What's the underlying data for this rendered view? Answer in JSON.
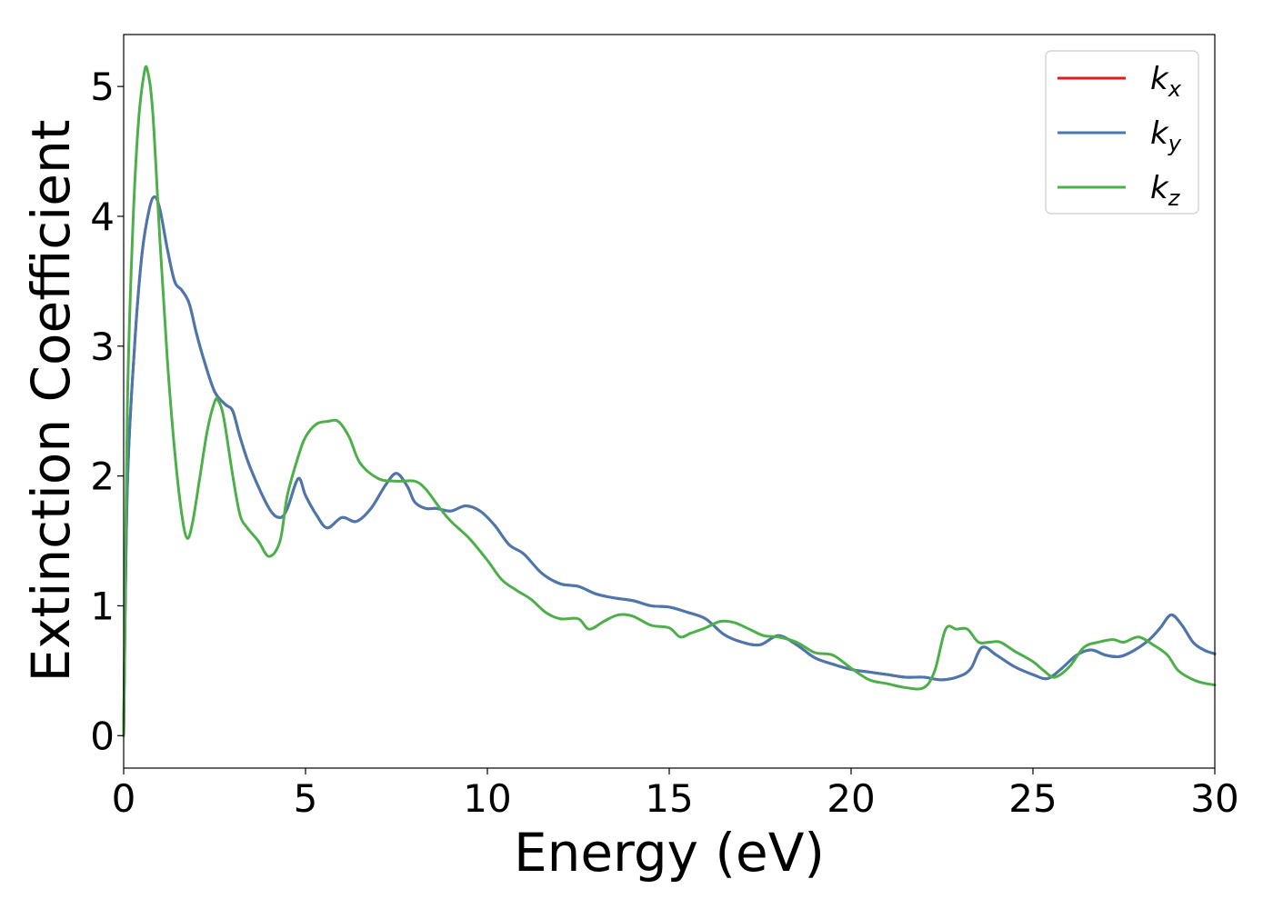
{
  "chart_data": {
    "type": "line",
    "xlabel": "Energy (eV)",
    "ylabel": "Extinction Coefficient",
    "xlim": [
      0,
      30
    ],
    "ylim": [
      -0.25,
      5.4
    ],
    "xticks": [
      0,
      5,
      10,
      15,
      20,
      25,
      30
    ],
    "yticks": [
      0,
      1,
      2,
      3,
      4,
      5
    ],
    "grid": false,
    "legend_position": "top-right",
    "series": [
      {
        "name": "k_x",
        "base": "k",
        "sub": "x",
        "color": "#e41a1c",
        "x": [
          0,
          0.1,
          0.3,
          0.5,
          0.7,
          0.85,
          1.0,
          1.2,
          1.4,
          1.6,
          1.8,
          2.0,
          2.2,
          2.5,
          2.8,
          3.0,
          3.2,
          3.5,
          4.0,
          4.3,
          4.5,
          4.8,
          5.0,
          5.3,
          5.6,
          6.0,
          6.4,
          6.8,
          7.2,
          7.5,
          7.8,
          8.0,
          8.3,
          8.6,
          9.0,
          9.4,
          9.8,
          10.2,
          10.6,
          11.0,
          11.5,
          12.0,
          12.5,
          13.0,
          13.5,
          14.0,
          14.5,
          15.0,
          15.5,
          16.0,
          16.5,
          17.0,
          17.5,
          18.0,
          18.5,
          19.0,
          19.5,
          20.0,
          20.5,
          21.0,
          21.5,
          22.0,
          22.5,
          23.0,
          23.3,
          23.6,
          24.0,
          24.5,
          25.0,
          25.4,
          25.8,
          26.2,
          26.6,
          27.0,
          27.4,
          27.8,
          28.2,
          28.5,
          28.8,
          29.1,
          29.4,
          29.7,
          30.0
        ],
        "y": [
          0,
          1.9,
          3.0,
          3.7,
          4.05,
          4.15,
          4.05,
          3.75,
          3.5,
          3.43,
          3.33,
          3.1,
          2.9,
          2.65,
          2.55,
          2.5,
          2.3,
          2.05,
          1.75,
          1.68,
          1.75,
          1.98,
          1.85,
          1.7,
          1.6,
          1.68,
          1.65,
          1.75,
          1.93,
          2.02,
          1.92,
          1.8,
          1.75,
          1.75,
          1.73,
          1.77,
          1.73,
          1.62,
          1.47,
          1.4,
          1.25,
          1.17,
          1.15,
          1.09,
          1.06,
          1.04,
          1.0,
          0.99,
          0.95,
          0.9,
          0.78,
          0.72,
          0.7,
          0.77,
          0.7,
          0.6,
          0.55,
          0.51,
          0.49,
          0.47,
          0.45,
          0.45,
          0.43,
          0.46,
          0.52,
          0.68,
          0.62,
          0.53,
          0.47,
          0.44,
          0.52,
          0.62,
          0.66,
          0.62,
          0.61,
          0.66,
          0.74,
          0.83,
          0.93,
          0.85,
          0.72,
          0.66,
          0.63
        ]
      },
      {
        "name": "k_y",
        "base": "k",
        "sub": "y",
        "color": "#4878b0",
        "x": [
          0,
          0.1,
          0.3,
          0.5,
          0.7,
          0.85,
          1.0,
          1.2,
          1.4,
          1.6,
          1.8,
          2.0,
          2.2,
          2.5,
          2.8,
          3.0,
          3.2,
          3.5,
          4.0,
          4.3,
          4.5,
          4.8,
          5.0,
          5.3,
          5.6,
          6.0,
          6.4,
          6.8,
          7.2,
          7.5,
          7.8,
          8.0,
          8.3,
          8.6,
          9.0,
          9.4,
          9.8,
          10.2,
          10.6,
          11.0,
          11.5,
          12.0,
          12.5,
          13.0,
          13.5,
          14.0,
          14.5,
          15.0,
          15.5,
          16.0,
          16.5,
          17.0,
          17.5,
          18.0,
          18.5,
          19.0,
          19.5,
          20.0,
          20.5,
          21.0,
          21.5,
          22.0,
          22.5,
          23.0,
          23.3,
          23.6,
          24.0,
          24.5,
          25.0,
          25.4,
          25.8,
          26.2,
          26.6,
          27.0,
          27.4,
          27.8,
          28.2,
          28.5,
          28.8,
          29.1,
          29.4,
          29.7,
          30.0
        ],
        "y": [
          0,
          1.9,
          3.0,
          3.7,
          4.05,
          4.15,
          4.05,
          3.75,
          3.5,
          3.43,
          3.33,
          3.1,
          2.9,
          2.65,
          2.55,
          2.5,
          2.3,
          2.05,
          1.75,
          1.68,
          1.75,
          1.98,
          1.85,
          1.7,
          1.6,
          1.68,
          1.65,
          1.75,
          1.93,
          2.02,
          1.92,
          1.8,
          1.75,
          1.75,
          1.73,
          1.77,
          1.73,
          1.62,
          1.47,
          1.4,
          1.25,
          1.17,
          1.15,
          1.09,
          1.06,
          1.04,
          1.0,
          0.99,
          0.95,
          0.9,
          0.78,
          0.72,
          0.7,
          0.77,
          0.7,
          0.6,
          0.55,
          0.51,
          0.49,
          0.47,
          0.45,
          0.45,
          0.43,
          0.46,
          0.52,
          0.68,
          0.62,
          0.53,
          0.47,
          0.44,
          0.52,
          0.62,
          0.66,
          0.62,
          0.61,
          0.66,
          0.74,
          0.83,
          0.93,
          0.85,
          0.72,
          0.66,
          0.63
        ]
      },
      {
        "name": "k_z",
        "base": "k",
        "sub": "z",
        "color": "#4daf4a",
        "x": [
          0,
          0.1,
          0.25,
          0.4,
          0.55,
          0.65,
          0.8,
          1.0,
          1.2,
          1.4,
          1.6,
          1.75,
          1.9,
          2.1,
          2.3,
          2.5,
          2.6,
          2.75,
          3.0,
          3.2,
          3.4,
          3.7,
          4.0,
          4.3,
          4.5,
          4.8,
          5.0,
          5.3,
          5.6,
          5.9,
          6.2,
          6.5,
          7.0,
          7.5,
          8.0,
          8.3,
          8.7,
          9.0,
          9.5,
          10.0,
          10.4,
          10.8,
          11.2,
          11.6,
          12.0,
          12.5,
          12.8,
          13.2,
          13.6,
          14.0,
          14.5,
          15.0,
          15.3,
          15.6,
          16.0,
          16.4,
          16.8,
          17.2,
          17.6,
          18.0,
          18.5,
          19.0,
          19.5,
          20.0,
          20.5,
          21.0,
          21.5,
          22.0,
          22.3,
          22.6,
          22.9,
          23.2,
          23.5,
          23.8,
          24.1,
          24.5,
          25.0,
          25.3,
          25.6,
          26.0,
          26.4,
          26.8,
          27.2,
          27.5,
          27.9,
          28.3,
          28.7,
          29.0,
          29.5,
          30.0
        ],
        "y": [
          0,
          2.5,
          3.9,
          4.7,
          5.08,
          5.13,
          4.8,
          3.8,
          2.9,
          2.2,
          1.7,
          1.52,
          1.65,
          2.0,
          2.35,
          2.57,
          2.58,
          2.45,
          2.0,
          1.7,
          1.6,
          1.5,
          1.38,
          1.5,
          1.85,
          2.15,
          2.3,
          2.4,
          2.42,
          2.42,
          2.3,
          2.1,
          1.98,
          1.96,
          1.96,
          1.9,
          1.75,
          1.65,
          1.52,
          1.35,
          1.2,
          1.12,
          1.05,
          0.95,
          0.9,
          0.9,
          0.82,
          0.88,
          0.93,
          0.92,
          0.85,
          0.83,
          0.76,
          0.79,
          0.83,
          0.88,
          0.87,
          0.82,
          0.77,
          0.76,
          0.72,
          0.64,
          0.62,
          0.52,
          0.43,
          0.4,
          0.37,
          0.37,
          0.5,
          0.82,
          0.82,
          0.82,
          0.72,
          0.72,
          0.72,
          0.65,
          0.57,
          0.5,
          0.45,
          0.53,
          0.68,
          0.72,
          0.74,
          0.72,
          0.76,
          0.7,
          0.62,
          0.5,
          0.42,
          0.39
        ]
      }
    ]
  }
}
